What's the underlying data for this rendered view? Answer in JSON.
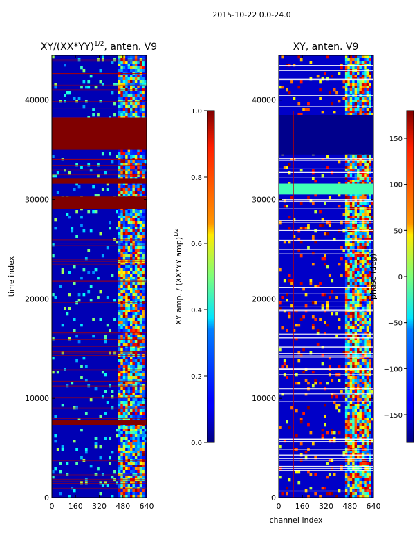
{
  "figure": {
    "suptitle": "2015-10-22 0.0-24.0"
  },
  "chart_data": [
    {
      "type": "heatmap",
      "title": "XY/(XX*YY)^1/2, anten. V9",
      "title_main": "XY/(XX*YY)",
      "title_sup": "1/2",
      "title_tail": ", anten. V9",
      "xlabel": "",
      "ylabel": "time index",
      "xlim": [
        0,
        640
      ],
      "ylim": [
        0,
        44500
      ],
      "x_ticks": [
        0,
        160,
        320,
        480,
        640
      ],
      "y_ticks": [
        0,
        10000,
        20000,
        30000,
        40000
      ],
      "colorbar": {
        "label_main": "XY amp. / (XX*YY amp)",
        "label_sup": "1/2",
        "range": [
          0.0,
          1.0
        ],
        "ticks": [
          "0.0",
          "0.2",
          "0.4",
          "0.6",
          "0.8",
          "1.0"
        ]
      },
      "saturated_time_bands": [
        [
          35000,
          38200
        ],
        [
          29000,
          30300
        ],
        [
          31600,
          32100
        ],
        [
          7300,
          7800
        ]
      ]
    },
    {
      "type": "heatmap",
      "title": "XY, anten. V9",
      "xlabel": "channel index",
      "ylabel": "",
      "xlim": [
        0,
        640
      ],
      "ylim": [
        0,
        44500
      ],
      "x_ticks": [
        0,
        160,
        320,
        480,
        640
      ],
      "y_ticks": [
        0,
        10000,
        20000,
        30000,
        40000
      ],
      "colorbar": {
        "label": "phase (deg)",
        "range": [
          -180,
          180
        ],
        "ticks": [
          "150",
          "100",
          "50",
          "0",
          "−50",
          "−100",
          "−150"
        ],
        "tick_values": [
          150,
          100,
          50,
          0,
          -50,
          -100,
          -150
        ]
      },
      "low_phase_time_bands": [
        [
          34500,
          38500
        ]
      ],
      "cyan_time_bands": [
        [
          30500,
          31600
        ]
      ]
    }
  ]
}
